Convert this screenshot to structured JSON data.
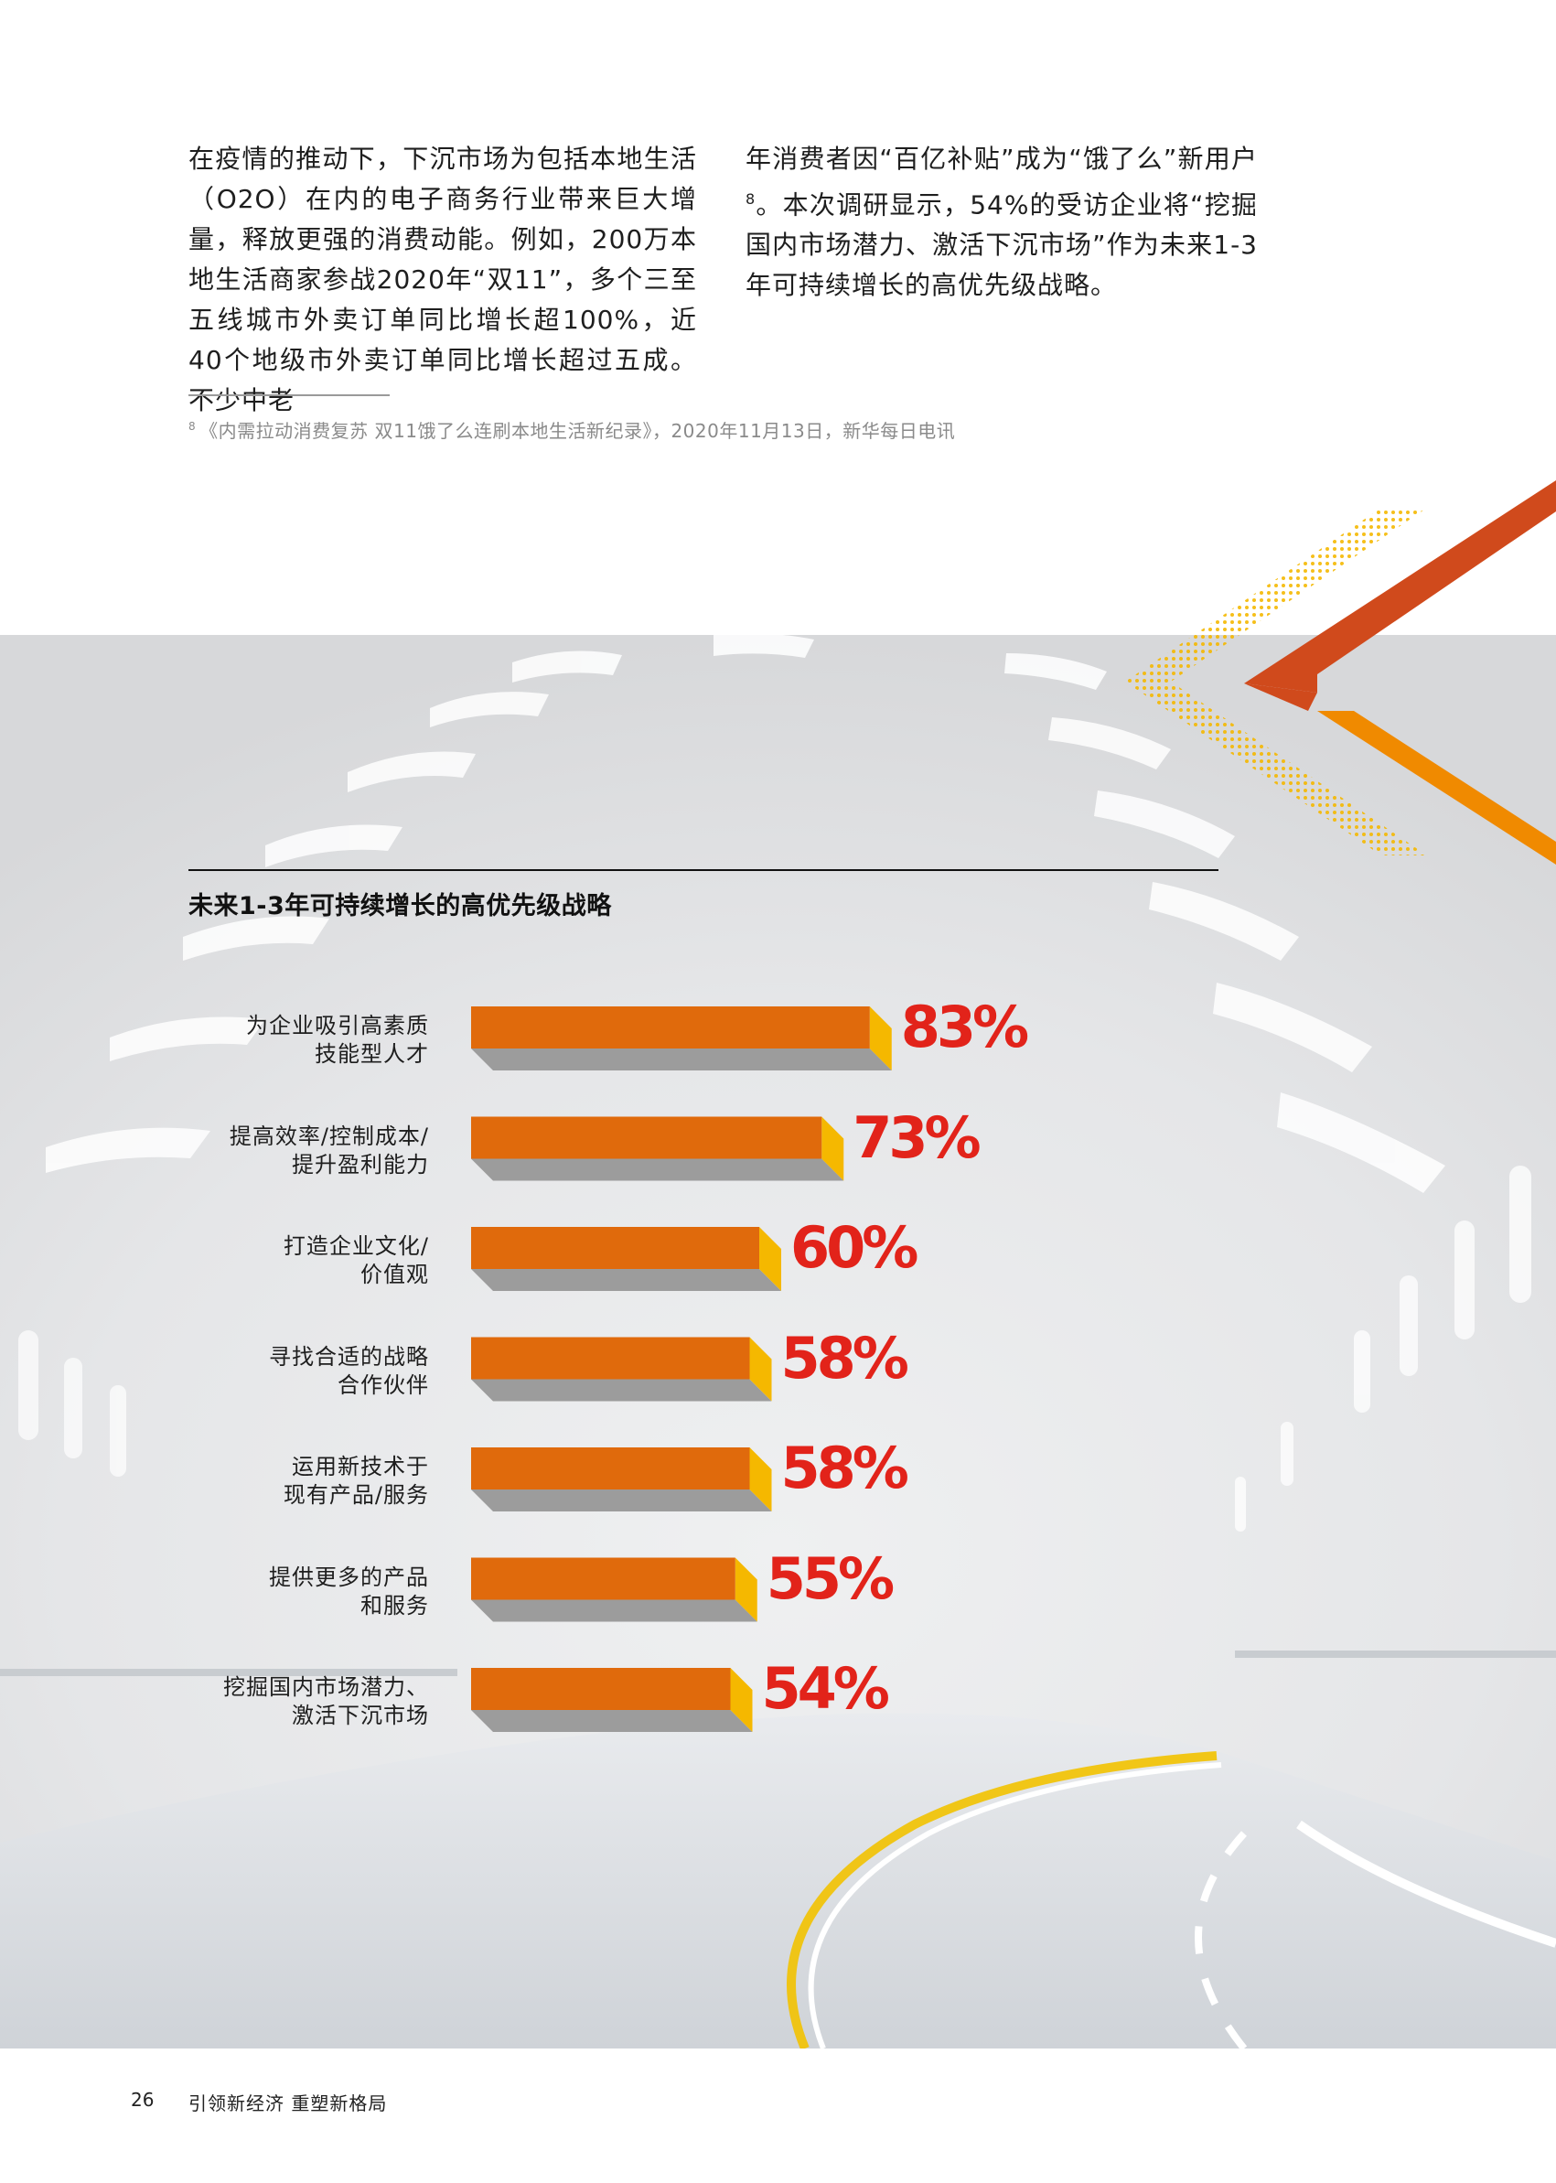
{
  "body_text": {
    "left": "在疫情的推动下，下沉市场为包括本地生活（O2O）在内的电子商务行业带来巨大增量，释放更强的消费动能。例如，200万本地生活商家参战2020年“双11”，多个三至五线城市外卖订单同比增长超100%，近40个地级市外卖订单同比增长超过五成。不少中老",
    "right_before": "年消费者因“百亿补贴”成为“饿了么”新用户",
    "right_sup": "8",
    "right_after": "。本次调研显示，54%的受访企业将“挖掘国内市场潜力、激活下沉市场”作为未来1-3年可持续增长的高优先级战略。"
  },
  "footnote": {
    "marker": "8",
    "text": "《内需拉动消费复苏 双11饿了么连刷本地生活新纪录》，2020年11月13日，新华每日电讯"
  },
  "chart_data": {
    "type": "bar",
    "orientation": "horizontal",
    "title": "未来1-3年可持续增长的高优先级战略",
    "categories": [
      [
        "为企业吸引高素质",
        "技能型人才"
      ],
      [
        "提高效率/控制成本/",
        "提升盈利能力"
      ],
      [
        "打造企业文化/",
        "价值观"
      ],
      [
        "寻找合适的战略",
        "合作伙伴"
      ],
      [
        "运用新技术于",
        "现有产品/服务"
      ],
      [
        "提供更多的产品",
        "和服务"
      ],
      [
        "挖掘国内市场潜力、",
        "激活下沉市场"
      ]
    ],
    "values": [
      83,
      73,
      60,
      58,
      58,
      55,
      54
    ],
    "labels": [
      "83%",
      "73%",
      "60%",
      "58%",
      "58%",
      "55%",
      "54%"
    ],
    "unit": "%",
    "colors": {
      "bar": "#e06a0c",
      "bar_side": "#f5b800",
      "bar_shadow": "#9c9c9c",
      "value_text": "#e2231a"
    }
  },
  "footer": {
    "page_number": "26",
    "title": "引领新经济 重塑新格局"
  }
}
